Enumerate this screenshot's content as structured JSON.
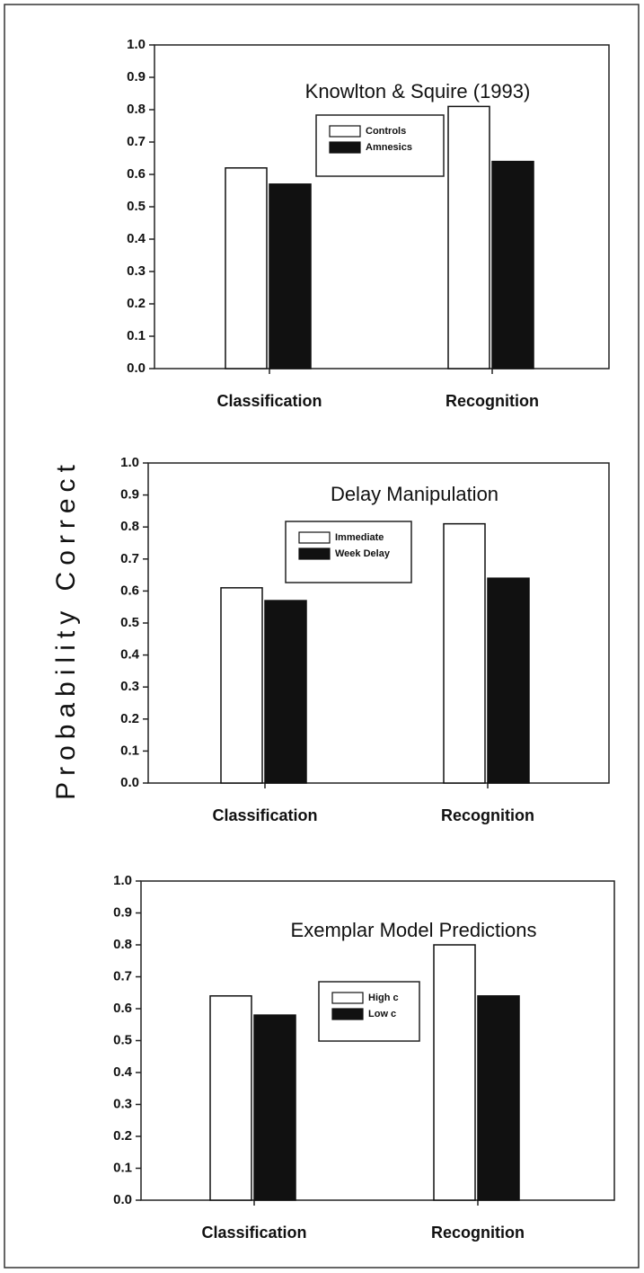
{
  "ylabel": "Probability Correct",
  "chart_data": [
    {
      "type": "bar",
      "title": "Knowlton & Squire (1993)",
      "categories": [
        "Classification",
        "Recognition"
      ],
      "series": [
        {
          "name": "Controls",
          "color": "#ffffff",
          "values": [
            0.62,
            0.81
          ]
        },
        {
          "name": "Amnesics",
          "color": "#111111",
          "values": [
            0.57,
            0.64
          ]
        }
      ],
      "ylim": [
        0,
        1
      ],
      "yticks": [
        {
          "value": 0,
          "label": "0.0"
        },
        0.1,
        0.2,
        0.3,
        0.4,
        0.5,
        0.6,
        0.7,
        0.8,
        0.9,
        {
          "value": 1,
          "label": "1.0"
        }
      ]
    },
    {
      "type": "bar",
      "title": "Delay Manipulation",
      "categories": [
        "Classification",
        "Recognition"
      ],
      "series": [
        {
          "name": "Immediate",
          "color": "#ffffff",
          "values": [
            0.61,
            0.81
          ]
        },
        {
          "name": "Week Delay",
          "color": "#111111",
          "values": [
            0.57,
            0.64
          ]
        }
      ],
      "ylim": [
        0,
        1
      ],
      "yticks": [
        {
          "value": 0,
          "label": "0.0"
        },
        0.1,
        0.2,
        0.3,
        0.4,
        0.5,
        0.6,
        0.7,
        0.8,
        0.9,
        {
          "value": 1,
          "label": "1.0"
        }
      ]
    },
    {
      "type": "bar",
      "title": "Exemplar Model Predictions",
      "categories": [
        "Classification",
        "Recognition"
      ],
      "series": [
        {
          "name": "High c",
          "color": "#ffffff",
          "values": [
            0.64,
            0.8
          ]
        },
        {
          "name": "Low c",
          "color": "#111111",
          "values": [
            0.58,
            0.64
          ]
        }
      ],
      "ylim": [
        0,
        1
      ],
      "yticks": [
        {
          "value": 0,
          "label": "0.0"
        },
        0.1,
        0.2,
        0.3,
        0.4,
        0.5,
        0.6,
        0.7,
        0.8,
        0.9,
        {
          "value": 1,
          "label": "1.0"
        }
      ]
    }
  ]
}
